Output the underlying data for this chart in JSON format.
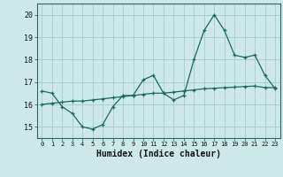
{
  "title": "",
  "xlabel": "Humidex (Indice chaleur)",
  "ylabel": "",
  "bg_color": "#cce8e8",
  "line_color": "#1a6b5a",
  "grid_color": "#aacfcf",
  "xlim": [
    -0.5,
    23.5
  ],
  "ylim": [
    14.5,
    20.5
  ],
  "yticks": [
    15,
    16,
    17,
    18,
    19,
    20
  ],
  "xticks": [
    0,
    1,
    2,
    3,
    4,
    5,
    6,
    7,
    8,
    9,
    10,
    11,
    12,
    13,
    14,
    15,
    16,
    17,
    18,
    19,
    20,
    21,
    22,
    23
  ],
  "series1_x": [
    0,
    1,
    2,
    3,
    4,
    5,
    6,
    7,
    8,
    9,
    10,
    11,
    12,
    13,
    14,
    15,
    16,
    17,
    18,
    19,
    20,
    21,
    22,
    23
  ],
  "series1_y": [
    16.6,
    16.5,
    15.9,
    15.6,
    15.0,
    14.9,
    15.1,
    15.9,
    16.4,
    16.4,
    17.1,
    17.3,
    16.5,
    16.2,
    16.4,
    18.0,
    19.3,
    20.0,
    19.3,
    18.2,
    18.1,
    18.2,
    17.3,
    16.7
  ],
  "series2_x": [
    0,
    1,
    2,
    3,
    4,
    5,
    6,
    7,
    8,
    9,
    10,
    11,
    12,
    13,
    14,
    15,
    16,
    17,
    18,
    19,
    20,
    21,
    22,
    23
  ],
  "series2_y": [
    16.0,
    16.05,
    16.1,
    16.15,
    16.15,
    16.2,
    16.25,
    16.3,
    16.35,
    16.4,
    16.45,
    16.5,
    16.5,
    16.55,
    16.6,
    16.65,
    16.7,
    16.72,
    16.75,
    16.77,
    16.8,
    16.82,
    16.75,
    16.75
  ]
}
